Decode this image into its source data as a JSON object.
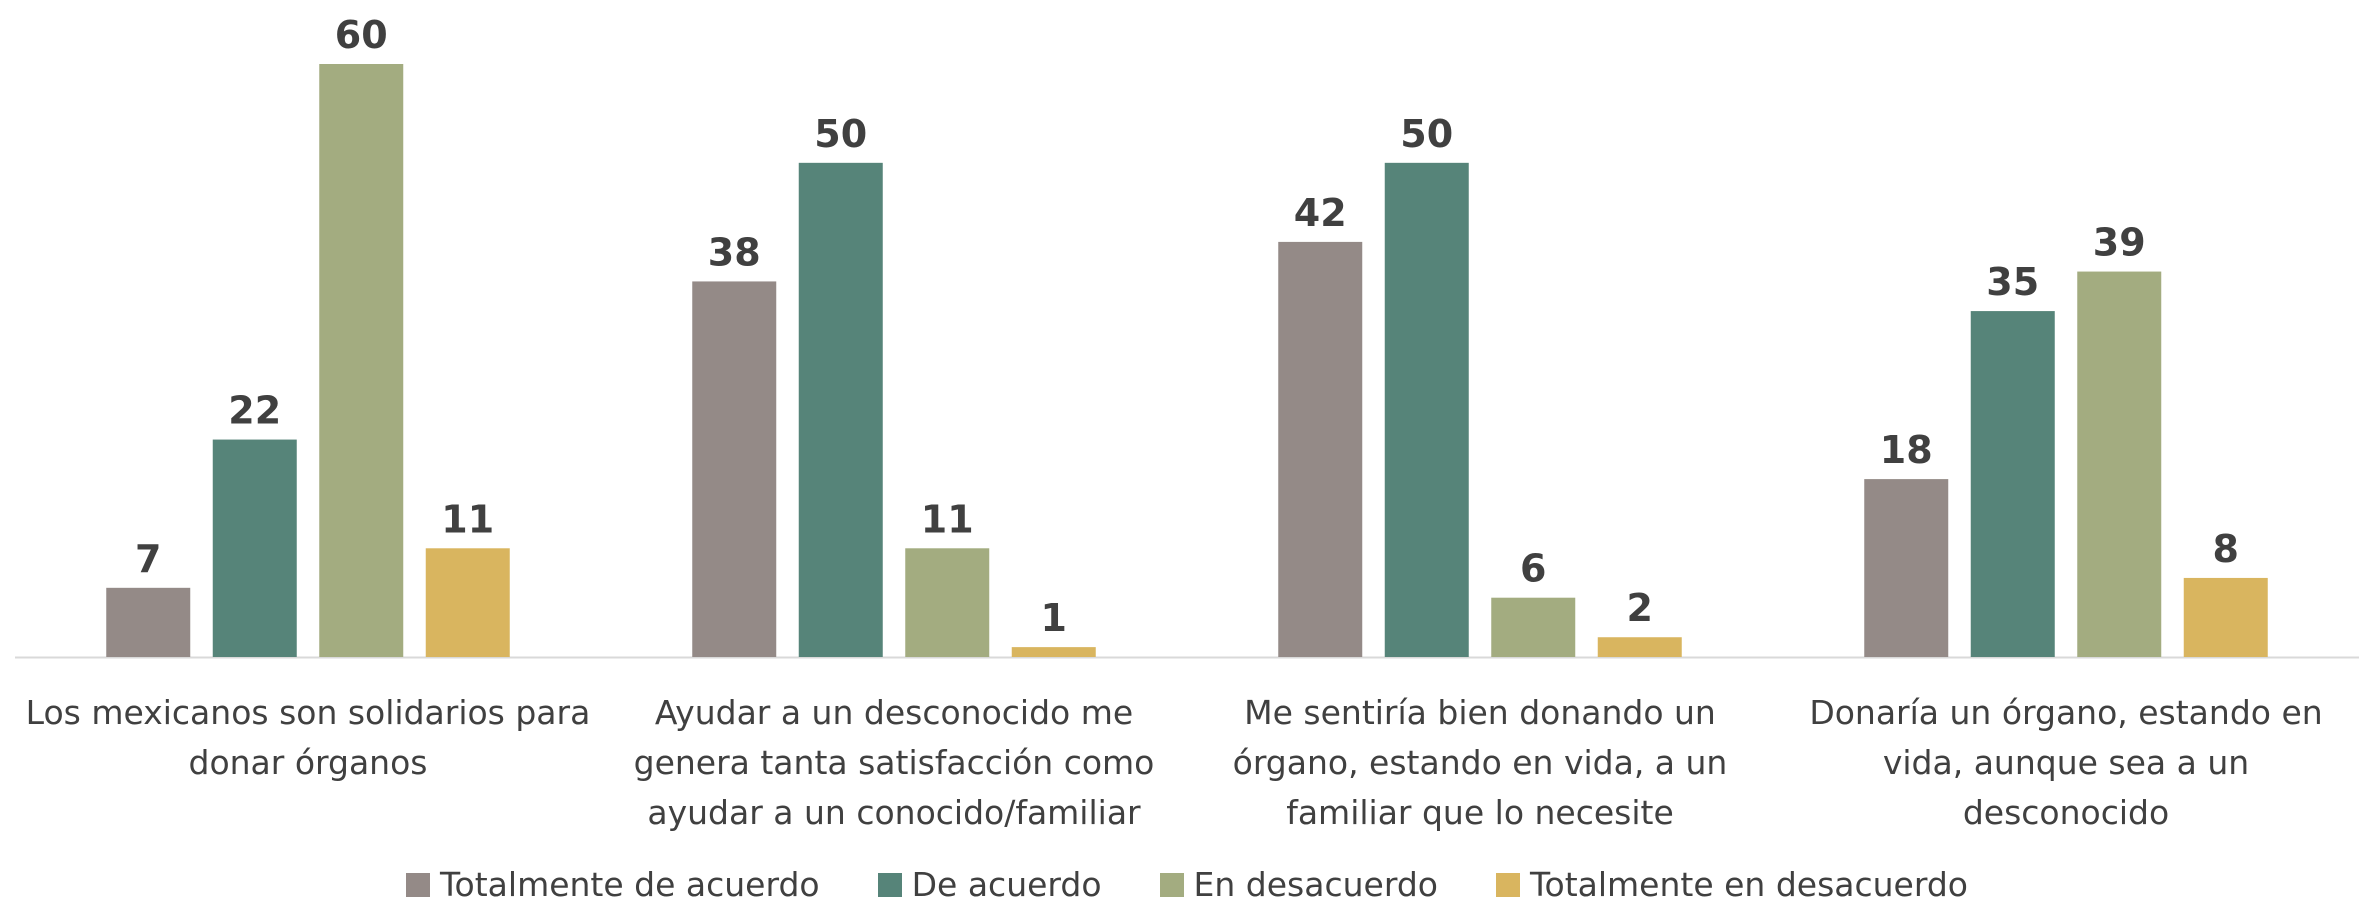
{
  "chart_data": {
    "type": "bar",
    "categories": [
      "Los mexicanos son solidarios para donar órganos",
      "Ayudar a un desconocido me genera tanta satisfacción como ayudar a un conocido/familiar",
      "Me sentiría bien donando un órgano, estando en vida, a un familiar que lo necesite",
      "Donaría un órgano, estando en vida, aunque sea a un desconocido"
    ],
    "series": [
      {
        "name": "Totalmente de acuerdo",
        "color": "#948a87",
        "values": [
          7,
          38,
          42,
          18
        ]
      },
      {
        "name": "De acuerdo",
        "color": "#568479",
        "values": [
          22,
          50,
          50,
          35
        ]
      },
      {
        "name": "En desacuerdo",
        "color": "#a3ac80",
        "values": [
          60,
          11,
          6,
          39
        ]
      },
      {
        "name": "Totalmente en desacuerdo",
        "color": "#d9b55f",
        "values": [
          11,
          1,
          2,
          8
        ]
      }
    ],
    "legend": "bottom"
  }
}
